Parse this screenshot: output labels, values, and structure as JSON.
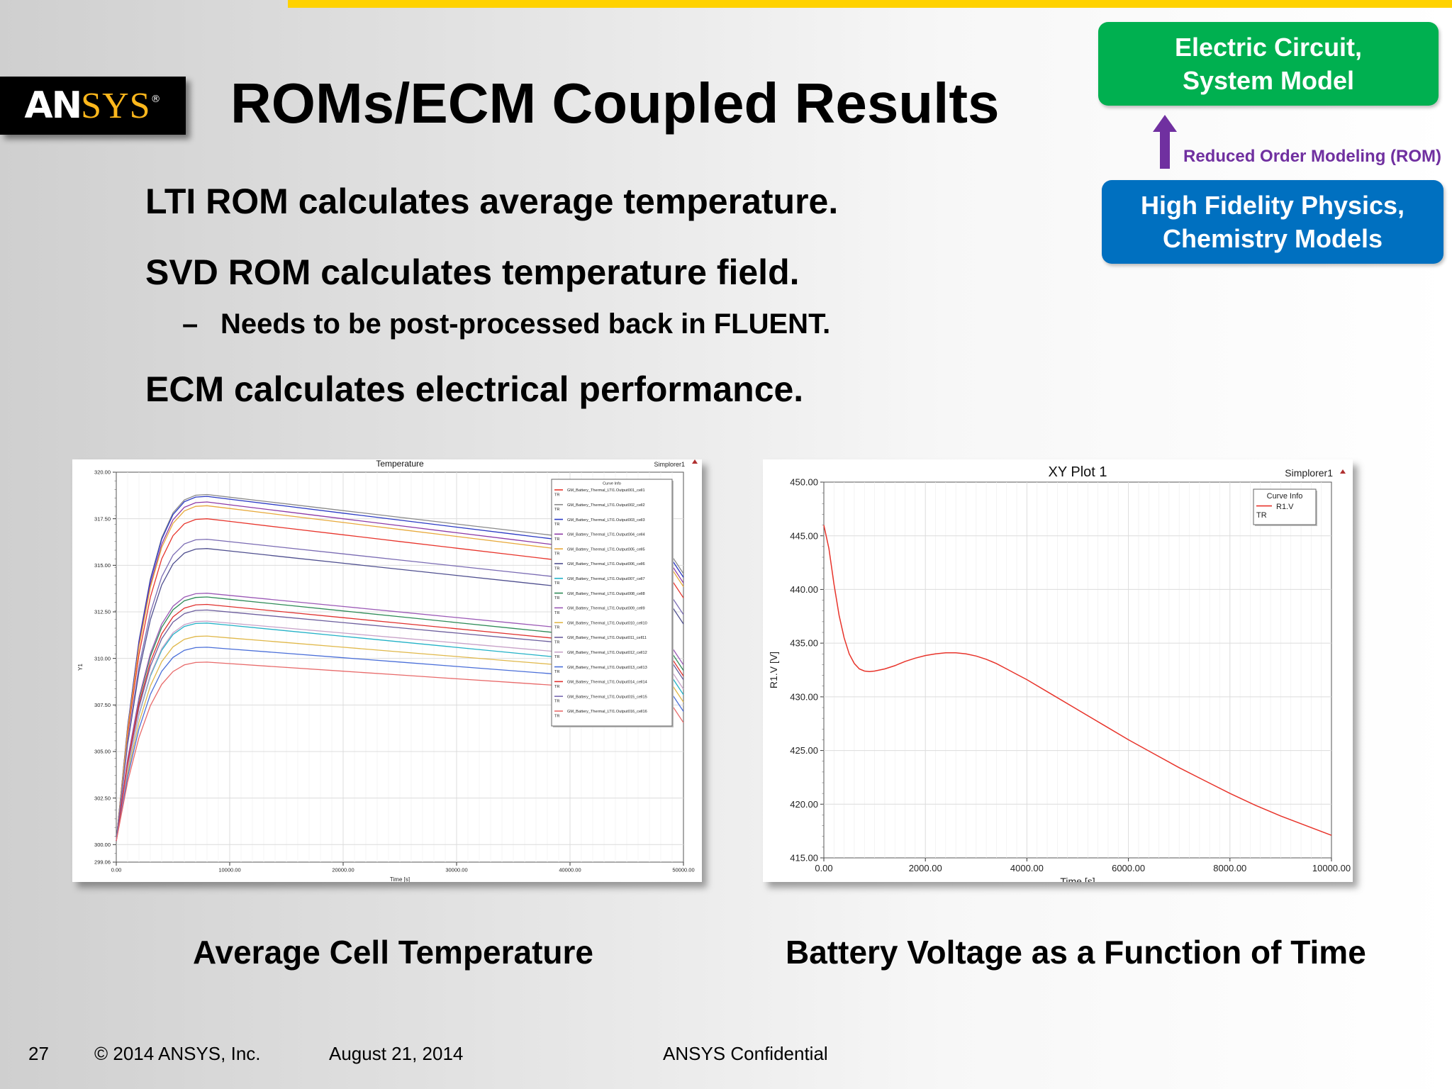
{
  "slide": {
    "logo_text": {
      "part1": "AN",
      "part2": "SYS",
      "mark": "®"
    },
    "title": "ROMs/ECM Coupled Results",
    "bullets": [
      "LTI ROM calculates average temperature.",
      "SVD ROM calculates temperature field.",
      "Needs to be post-processed back in FLUENT.",
      "ECM calculates electrical performance."
    ],
    "sub_dash": "–",
    "diagram": {
      "top_box": [
        "Electric Circuit,",
        "System Model"
      ],
      "arrow_label": "Reduced Order Modeling (ROM)",
      "bottom_box": [
        "High Fidelity Physics,",
        "Chemistry Models"
      ],
      "colors": {
        "green": "#00b050",
        "blue": "#0070c0",
        "purple": "#7030a0"
      }
    },
    "captions": [
      "Average Cell Temperature",
      "Battery Voltage as a Function of Time"
    ],
    "footer": {
      "page": "27",
      "copyright": "© 2014 ANSYS, Inc.",
      "date": "August 21, 2014",
      "confidential": "ANSYS Confidential"
    }
  },
  "chart_data": [
    {
      "type": "line",
      "title": "Temperature",
      "corner_label": "Simplorer1",
      "xlabel": "Time [s]",
      "ylabel": "Y1",
      "xlim": [
        0,
        50000
      ],
      "ylim": [
        299.06,
        320
      ],
      "x_ticks": [
        "0.00",
        "10000.00",
        "20000.00",
        "30000.00",
        "40000.00",
        "50000.00"
      ],
      "y_ticks": [
        "320.00",
        "317.50",
        "315.00",
        "312.50",
        "310.00",
        "307.50",
        "305.00",
        "302.50",
        "300.00",
        "299.06"
      ],
      "legend_title": "Curve Info",
      "legend_placement": "top-right",
      "legend_suffix": "TR",
      "grid": true,
      "x": [
        0,
        1000,
        2000,
        3000,
        4000,
        5000,
        6000,
        7000,
        8000,
        10000,
        15000,
        20000,
        25000,
        30000,
        35000,
        38000,
        40000,
        45000,
        48000,
        49000,
        50000
      ],
      "series": [
        {
          "name": "GM_Battery_Thermal_LTI1.Output001_cell1",
          "color": "#e8342b",
          "peak": 317.5,
          "end": 315.2
        },
        {
          "name": "GM_Battery_Thermal_LTI1.Output002_cell2",
          "color": "#8a8a8a",
          "peak": 318.8,
          "end": 316.5
        },
        {
          "name": "GM_Battery_Thermal_LTI1.Output003_cell3",
          "color": "#2a39c4",
          "peak": 318.7,
          "end": 316.3
        },
        {
          "name": "GM_Battery_Thermal_LTI1.Output004_cell4",
          "color": "#8e3aa6",
          "peak": 318.4,
          "end": 316.0
        },
        {
          "name": "GM_Battery_Thermal_LTI1.Output005_cell5",
          "color": "#e8a93a",
          "peak": 318.2,
          "end": 315.8
        },
        {
          "name": "GM_Battery_Thermal_LTI1.Output006_cell6",
          "color": "#4f4f8f",
          "peak": 315.9,
          "end": 313.8
        },
        {
          "name": "GM_Battery_Thermal_LTI1.Output007_cell7",
          "color": "#23b2c7",
          "peak": 311.9,
          "end": 310.0
        },
        {
          "name": "GM_Battery_Thermal_LTI1.Output008_cell8",
          "color": "#2e8b57",
          "peak": 313.3,
          "end": 311.3
        },
        {
          "name": "GM_Battery_Thermal_LTI1.Output009_cell9",
          "color": "#9b59b6",
          "peak": 313.5,
          "end": 311.6
        },
        {
          "name": "GM_Battery_Thermal_LTI1.Output010_cell10",
          "color": "#e0b84a",
          "peak": 311.2,
          "end": 309.6
        },
        {
          "name": "GM_Battery_Thermal_LTI1.Output011_cell11",
          "color": "#6d5f9e",
          "peak": 312.6,
          "end": 310.8
        },
        {
          "name": "GM_Battery_Thermal_LTI1.Output012_cell12",
          "color": "#c8a2c8",
          "peak": 312.0,
          "end": 310.3
        },
        {
          "name": "GM_Battery_Thermal_LTI1.Output013_cell13",
          "color": "#4a6fd9",
          "peak": 310.6,
          "end": 309.1
        },
        {
          "name": "GM_Battery_Thermal_LTI1.Output014_cell14",
          "color": "#e0312e",
          "peak": 312.9,
          "end": 311.0
        },
        {
          "name": "GM_Battery_Thermal_LTI1.Output015_cell15",
          "color": "#7a6bb3",
          "peak": 316.4,
          "end": 314.3
        },
        {
          "name": "GM_Battery_Thermal_LTI1.Output016_cell16",
          "color": "#e86a6a",
          "peak": 309.8,
          "end": 308.5
        }
      ]
    },
    {
      "type": "line",
      "title": "XY Plot 1",
      "corner_label": "Simplorer1",
      "xlabel": "Time [s]",
      "ylabel": "R1.V [V]",
      "xlim": [
        0,
        10000
      ],
      "ylim": [
        415,
        450
      ],
      "x_ticks": [
        "0.00",
        "2000.00",
        "4000.00",
        "6000.00",
        "8000.00",
        "10000.00"
      ],
      "y_ticks": [
        "450.00",
        "445.00",
        "440.00",
        "435.00",
        "430.00",
        "425.00",
        "420.00",
        "415.00"
      ],
      "legend_title": "Curve Info",
      "legend_placement": "top-right",
      "legend_suffix": "TR",
      "grid": true,
      "series": [
        {
          "name": "R1.V",
          "color": "#e8342b",
          "x": [
            0,
            100,
            200,
            300,
            400,
            500,
            600,
            700,
            800,
            900,
            1000,
            1200,
            1400,
            1600,
            1800,
            2000,
            2200,
            2400,
            2600,
            2800,
            3000,
            3200,
            3400,
            3600,
            3800,
            4000,
            4500,
            5000,
            5500,
            6000,
            6500,
            7000,
            7500,
            8000,
            8500,
            9000,
            9500,
            10000
          ],
          "y": [
            446.0,
            443.8,
            440.5,
            437.6,
            435.5,
            434.0,
            433.1,
            432.6,
            432.4,
            432.35,
            432.4,
            432.6,
            432.9,
            433.3,
            433.6,
            433.85,
            434.0,
            434.1,
            434.1,
            434.0,
            433.8,
            433.5,
            433.1,
            432.6,
            432.1,
            431.6,
            430.2,
            428.8,
            427.4,
            426.0,
            424.7,
            423.4,
            422.2,
            421.0,
            419.9,
            418.9,
            418.0,
            417.1
          ]
        }
      ]
    }
  ]
}
